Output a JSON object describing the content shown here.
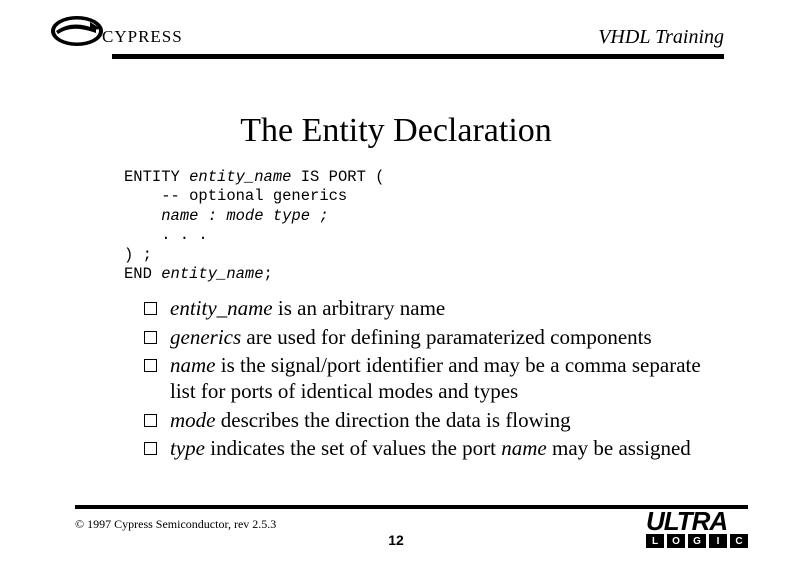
{
  "header": {
    "brand": "CYPRESS",
    "title": "VHDL Training"
  },
  "title": "The Entity Declaration",
  "code": {
    "l1a": "ENTITY ",
    "l1b": "entity_name",
    "l1c": " IS PORT (",
    "l2a": "    -- optional generics",
    "l3a": "    ",
    "l3b": "name : mode type ;",
    "l4": "    . . .",
    "l5": ") ;",
    "l6a": "END ",
    "l6b": "entity_name",
    "l6c": ";"
  },
  "bullets": [
    {
      "em": "entity_name",
      "rest": " is an arbitrary name"
    },
    {
      "em": "generics",
      "rest": " are used for defining paramaterized components"
    },
    {
      "em": "name",
      "rest": " is the signal/port identifier and may be a comma separate list for ports of identical modes and types"
    },
    {
      "em": "mode",
      "rest": " describes the direction the data is flowing"
    },
    {
      "em": "type",
      "rest": " indicates the set of values the port ",
      "em2": "name",
      "rest2": " may be assigned"
    }
  ],
  "footer": {
    "copyright": "© 1997 Cypress Semiconductor, rev 2.5.3",
    "page": "12",
    "logo_main": "ULTRA",
    "logo_boxes": [
      "L",
      "O",
      "G",
      "I",
      "C"
    ]
  }
}
